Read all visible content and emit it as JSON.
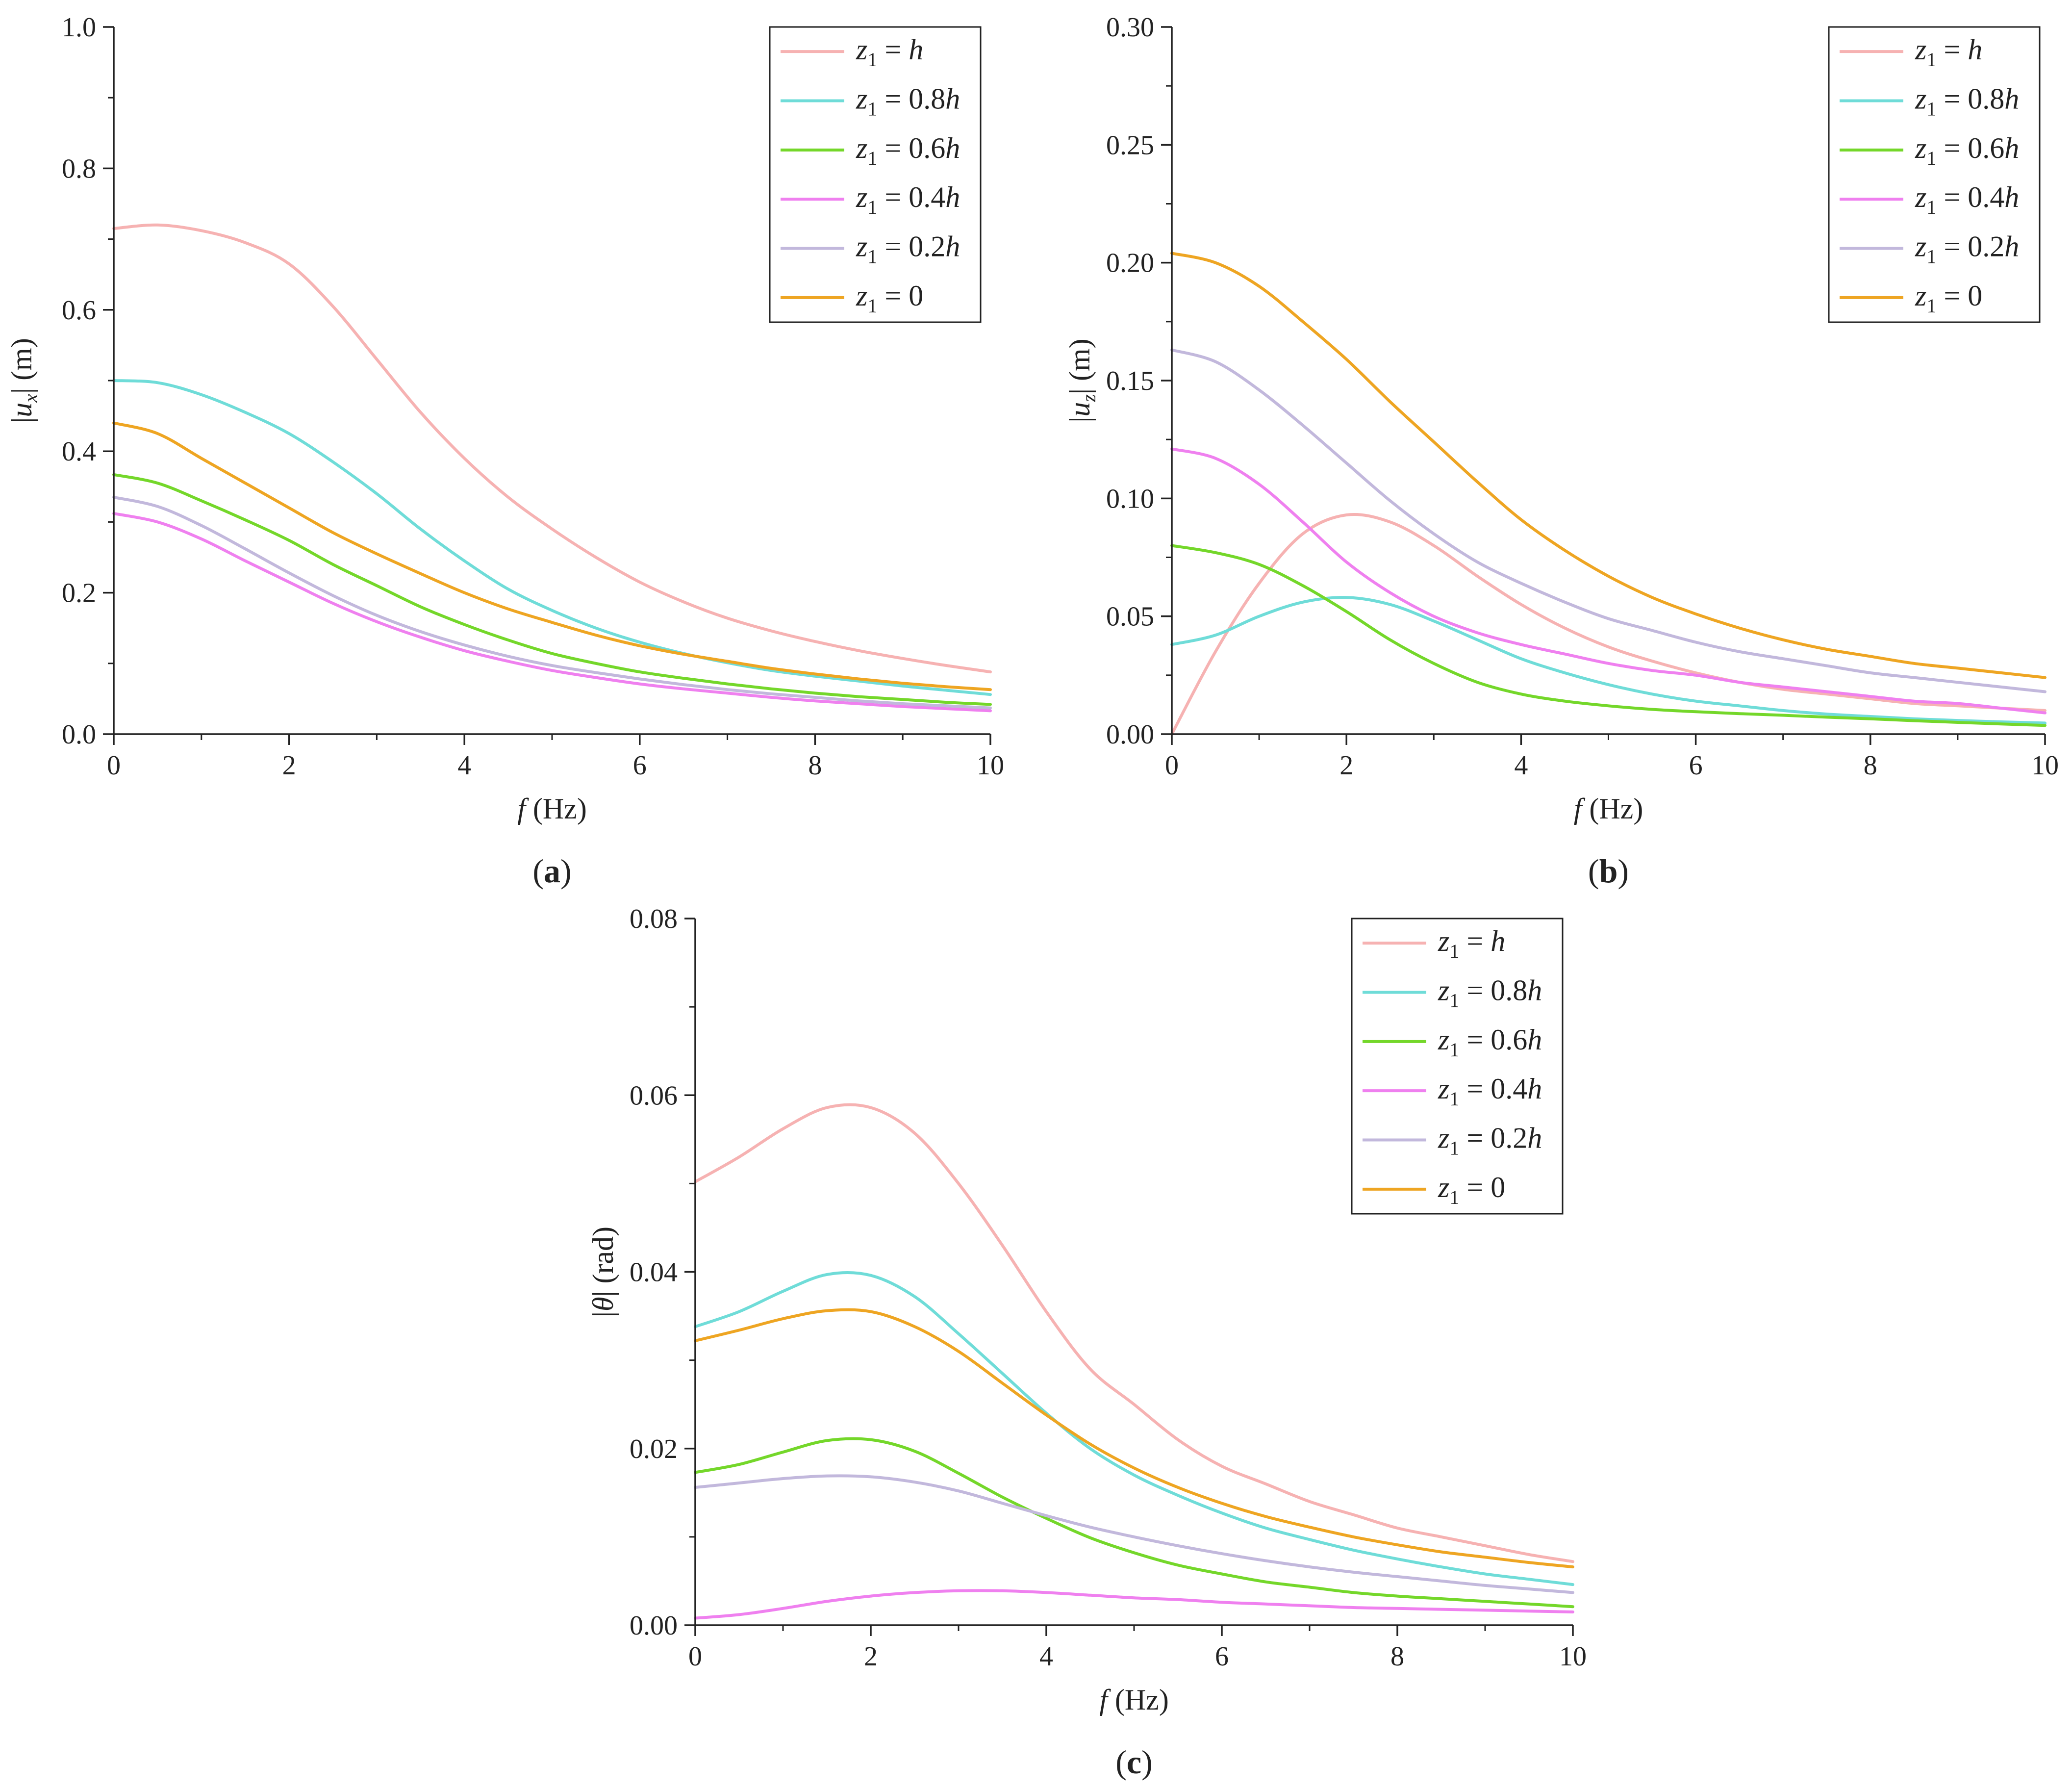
{
  "legend_labels": [
    {
      "var": "z",
      "sub": "1",
      "eq": " = ",
      "num": "",
      "h": "h"
    },
    {
      "var": "z",
      "sub": "1",
      "eq": " = ",
      "num": "0.8",
      "h": "h"
    },
    {
      "var": "z",
      "sub": "1",
      "eq": " = ",
      "num": "0.6",
      "h": "h"
    },
    {
      "var": "z",
      "sub": "1",
      "eq": " = ",
      "num": "0.4",
      "h": "h"
    },
    {
      "var": "z",
      "sub": "1",
      "eq": " = ",
      "num": "0.2",
      "h": "h"
    },
    {
      "var": "z",
      "sub": "1",
      "eq": " = ",
      "num": "0",
      "h": ""
    }
  ],
  "colors": [
    "#f6b2b2",
    "#6fdcd8",
    "#74d72a",
    "#ef80ef",
    "#c2b8dc",
    "#eea522"
  ],
  "chart_data": [
    {
      "type": "line",
      "panel_label": "a",
      "xlabel": {
        "var": "f",
        "unit": " (Hz)"
      },
      "ylabel": {
        "pre": "|",
        "var": "u",
        "sub": "x",
        "post": "| (m)"
      },
      "xlim": [
        0,
        10
      ],
      "ylim": [
        0,
        1.0
      ],
      "xticks": [
        0,
        2,
        4,
        6,
        8,
        10
      ],
      "xtick_labels": [
        "0",
        "2",
        "4",
        "6",
        "8",
        "10"
      ],
      "yticks": [
        0,
        0.2,
        0.4,
        0.6,
        0.8,
        1.0
      ],
      "ytick_labels": [
        "0.0",
        "0.2",
        "0.4",
        "0.6",
        "0.8",
        "1.0"
      ],
      "legend": "top-right",
      "x": [
        0,
        0.5,
        1,
        1.5,
        2,
        2.5,
        3,
        3.5,
        4,
        4.5,
        5,
        5.5,
        6,
        6.5,
        7,
        7.5,
        8,
        8.5,
        9,
        9.5,
        10
      ],
      "series": [
        {
          "name": "z1 = h",
          "values": [
            0.715,
            0.72,
            0.712,
            0.695,
            0.665,
            0.605,
            0.53,
            0.455,
            0.39,
            0.335,
            0.29,
            0.25,
            0.215,
            0.187,
            0.164,
            0.146,
            0.131,
            0.118,
            0.107,
            0.097,
            0.088
          ]
        },
        {
          "name": "z1 = 0.8h",
          "values": [
            0.5,
            0.497,
            0.48,
            0.455,
            0.425,
            0.385,
            0.34,
            0.29,
            0.245,
            0.205,
            0.175,
            0.15,
            0.13,
            0.114,
            0.101,
            0.09,
            0.082,
            0.075,
            0.068,
            0.062,
            0.056
          ]
        },
        {
          "name": "z1 = 0.6h",
          "values": [
            0.367,
            0.355,
            0.33,
            0.303,
            0.274,
            0.24,
            0.21,
            0.18,
            0.155,
            0.133,
            0.114,
            0.1,
            0.088,
            0.079,
            0.071,
            0.064,
            0.058,
            0.053,
            0.049,
            0.045,
            0.042
          ]
        },
        {
          "name": "z1 = 0.4h",
          "values": [
            0.312,
            0.3,
            0.276,
            0.245,
            0.215,
            0.185,
            0.159,
            0.137,
            0.118,
            0.103,
            0.09,
            0.08,
            0.071,
            0.064,
            0.058,
            0.052,
            0.047,
            0.043,
            0.039,
            0.036,
            0.033
          ]
        },
        {
          "name": "z1 = 0.2h",
          "values": [
            0.335,
            0.322,
            0.295,
            0.262,
            0.228,
            0.196,
            0.168,
            0.145,
            0.126,
            0.11,
            0.097,
            0.087,
            0.078,
            0.07,
            0.063,
            0.057,
            0.052,
            0.047,
            0.043,
            0.04,
            0.037
          ]
        },
        {
          "name": "z1 = 0",
          "values": [
            0.44,
            0.425,
            0.39,
            0.355,
            0.32,
            0.285,
            0.255,
            0.227,
            0.2,
            0.177,
            0.158,
            0.14,
            0.125,
            0.113,
            0.103,
            0.093,
            0.085,
            0.078,
            0.072,
            0.067,
            0.063
          ]
        }
      ]
    },
    {
      "type": "line",
      "panel_label": "b",
      "xlabel": {
        "var": "f",
        "unit": " (Hz)"
      },
      "ylabel": {
        "pre": "|",
        "var": "u",
        "sub": "z",
        "post": "| (m)"
      },
      "xlim": [
        0,
        10
      ],
      "ylim": [
        0,
        0.3
      ],
      "xticks": [
        0,
        2,
        4,
        6,
        8,
        10
      ],
      "xtick_labels": [
        "0",
        "2",
        "4",
        "6",
        "8",
        "10"
      ],
      "yticks": [
        0,
        0.05,
        0.1,
        0.15,
        0.2,
        0.25,
        0.3
      ],
      "ytick_labels": [
        "0.00",
        "0.05",
        "0.10",
        "0.15",
        "0.20",
        "0.25",
        "0.30"
      ],
      "legend": "top-right",
      "x": [
        0,
        0.5,
        1,
        1.5,
        2,
        2.5,
        3,
        3.5,
        4,
        4.5,
        5,
        5.5,
        6,
        6.5,
        7,
        7.5,
        8,
        8.5,
        9,
        9.5,
        10
      ],
      "series": [
        {
          "name": "z1 = h",
          "values": [
            0.0,
            0.035,
            0.064,
            0.085,
            0.093,
            0.09,
            0.08,
            0.067,
            0.055,
            0.045,
            0.037,
            0.031,
            0.026,
            0.022,
            0.019,
            0.017,
            0.015,
            0.013,
            0.012,
            0.011,
            0.01
          ]
        },
        {
          "name": "z1 = 0.8h",
          "values": [
            0.038,
            0.042,
            0.05,
            0.056,
            0.058,
            0.055,
            0.048,
            0.04,
            0.032,
            0.026,
            0.021,
            0.017,
            0.014,
            0.012,
            0.01,
            0.0085,
            0.0075,
            0.0065,
            0.0058,
            0.0052,
            0.0047
          ]
        },
        {
          "name": "z1 = 0.6h",
          "values": [
            0.08,
            0.077,
            0.072,
            0.063,
            0.052,
            0.04,
            0.03,
            0.022,
            0.017,
            0.014,
            0.012,
            0.0105,
            0.0095,
            0.0087,
            0.008,
            0.0072,
            0.0065,
            0.0057,
            0.005,
            0.0043,
            0.0037
          ]
        },
        {
          "name": "z1 = 0.4h",
          "values": [
            0.121,
            0.117,
            0.106,
            0.09,
            0.073,
            0.06,
            0.05,
            0.043,
            0.038,
            0.034,
            0.03,
            0.027,
            0.025,
            0.022,
            0.02,
            0.018,
            0.016,
            0.014,
            0.013,
            0.011,
            0.009
          ]
        },
        {
          "name": "z1 = 0.2h",
          "values": [
            0.163,
            0.158,
            0.146,
            0.131,
            0.115,
            0.099,
            0.085,
            0.073,
            0.064,
            0.056,
            0.049,
            0.044,
            0.039,
            0.035,
            0.032,
            0.029,
            0.026,
            0.024,
            0.022,
            0.02,
            0.018
          ]
        },
        {
          "name": "z1 = 0",
          "values": [
            0.204,
            0.2,
            0.19,
            0.175,
            0.159,
            0.141,
            0.124,
            0.107,
            0.091,
            0.078,
            0.067,
            0.058,
            0.051,
            0.045,
            0.04,
            0.036,
            0.033,
            0.03,
            0.028,
            0.026,
            0.024
          ]
        }
      ]
    },
    {
      "type": "line",
      "panel_label": "c",
      "xlabel": {
        "var": "f",
        "unit": " (Hz)"
      },
      "ylabel": {
        "pre": "|",
        "var": "θ",
        "sub": "",
        "post": "| (rad)"
      },
      "xlim": [
        0,
        10
      ],
      "ylim": [
        0,
        0.08
      ],
      "xticks": [
        0,
        2,
        4,
        6,
        8,
        10
      ],
      "xtick_labels": [
        "0",
        "2",
        "4",
        "6",
        "8",
        "10"
      ],
      "yticks": [
        0,
        0.02,
        0.04,
        0.06,
        0.08
      ],
      "ytick_labels": [
        "0.00",
        "0.02",
        "0.04",
        "0.06",
        "0.08"
      ],
      "legend": "top-right",
      "x": [
        0,
        0.5,
        1,
        1.5,
        2,
        2.5,
        3,
        3.5,
        4,
        4.5,
        5,
        5.5,
        6,
        6.5,
        7,
        7.5,
        8,
        8.5,
        9,
        9.5,
        10
      ],
      "series": [
        {
          "name": "z1 = h",
          "values": [
            0.0502,
            0.053,
            0.0562,
            0.0586,
            0.0586,
            0.0557,
            0.05,
            0.043,
            0.0355,
            0.029,
            0.025,
            0.021,
            0.018,
            0.016,
            0.014,
            0.0125,
            0.011,
            0.01,
            0.009,
            0.008,
            0.0072
          ]
        },
        {
          "name": "z1 = 0.8h",
          "values": [
            0.0338,
            0.0355,
            0.0378,
            0.0397,
            0.0396,
            0.0372,
            0.033,
            0.0285,
            0.024,
            0.02,
            0.017,
            0.0147,
            0.0127,
            0.011,
            0.0097,
            0.0085,
            0.0075,
            0.0066,
            0.0058,
            0.0052,
            0.0046
          ]
        },
        {
          "name": "z1 = 0.6h",
          "values": [
            0.0173,
            0.0182,
            0.0196,
            0.0209,
            0.021,
            0.0197,
            0.0172,
            0.0145,
            0.0121,
            0.0099,
            0.0082,
            0.0068,
            0.0058,
            0.0049,
            0.0043,
            0.0037,
            0.0033,
            0.003,
            0.0027,
            0.0024,
            0.0021
          ]
        },
        {
          "name": "z1 = 0.4h",
          "values": [
            0.0008,
            0.0012,
            0.0019,
            0.0027,
            0.0033,
            0.0037,
            0.0039,
            0.0039,
            0.0037,
            0.0034,
            0.0031,
            0.0029,
            0.0026,
            0.0024,
            0.0022,
            0.002,
            0.0019,
            0.0018,
            0.0017,
            0.0016,
            0.0015
          ]
        },
        {
          "name": "z1 = 0.2h",
          "values": [
            0.0156,
            0.0161,
            0.0166,
            0.0169,
            0.0168,
            0.0162,
            0.0152,
            0.0138,
            0.0124,
            0.0111,
            0.01,
            0.009,
            0.0081,
            0.0073,
            0.0066,
            0.006,
            0.0055,
            0.005,
            0.0045,
            0.0041,
            0.0037
          ]
        },
        {
          "name": "z1 = 0",
          "values": [
            0.0322,
            0.0334,
            0.0347,
            0.0356,
            0.0355,
            0.0338,
            0.031,
            0.0274,
            0.0238,
            0.0205,
            0.0178,
            0.0156,
            0.0138,
            0.0123,
            0.0111,
            0.01,
            0.0091,
            0.0083,
            0.0077,
            0.0071,
            0.0066
          ]
        }
      ]
    }
  ]
}
